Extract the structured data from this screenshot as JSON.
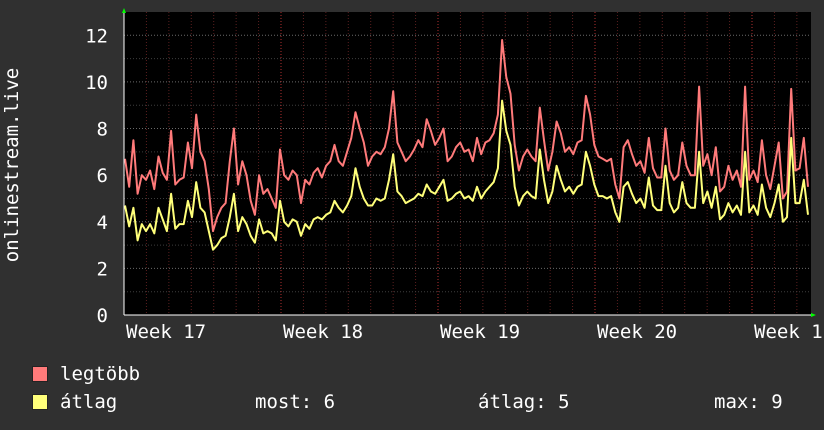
{
  "chart_data": {
    "type": "line",
    "ylabel": "onlinestream.live",
    "x_ticks": [
      "Week 17",
      "Week 18",
      "Week 19",
      "Week 20",
      "Week 1"
    ],
    "ylim": [
      0,
      13
    ],
    "y_ticks": [
      0,
      2,
      4,
      6,
      8,
      10,
      12
    ],
    "grid": true,
    "legend_position": "bottom-left",
    "series": [
      {
        "name": "legtöbb",
        "color": "#ff7a7a",
        "values": [
          6.7,
          5.5,
          7.5,
          5.2,
          6.0,
          5.8,
          6.2,
          5.4,
          6.8,
          6.1,
          5.8,
          7.9,
          5.6,
          5.8,
          5.9,
          7.4,
          6.3,
          8.6,
          7.0,
          6.6,
          5.4,
          3.6,
          4.2,
          4.6,
          4.8,
          6.6,
          8.0,
          5.6,
          6.6,
          6.0,
          4.9,
          4.3,
          6.0,
          5.2,
          5.4,
          5.0,
          4.6,
          7.1,
          6.0,
          5.8,
          6.2,
          6.0,
          4.8,
          5.8,
          5.6,
          6.1,
          6.3,
          5.9,
          6.4,
          6.6,
          7.3,
          6.6,
          6.4,
          7.0,
          7.6,
          8.7,
          8.0,
          7.4,
          6.4,
          6.8,
          7.0,
          6.9,
          7.2,
          8.0,
          9.6,
          7.4,
          7.0,
          6.6,
          6.8,
          7.1,
          7.5,
          7.2,
          8.4,
          7.9,
          7.3,
          7.6,
          8.0,
          6.6,
          6.8,
          7.2,
          7.4,
          7.0,
          7.1,
          6.6,
          7.6,
          6.9,
          7.4,
          7.5,
          7.8,
          8.6,
          11.8,
          10.2,
          9.5,
          7.3,
          6.2,
          6.8,
          7.1,
          6.8,
          6.6,
          8.9,
          7.5,
          6.2,
          7.0,
          8.3,
          7.8,
          7.0,
          7.2,
          6.9,
          7.4,
          7.5,
          9.4,
          8.6,
          7.3,
          6.8,
          6.7,
          6.6,
          6.7,
          5.6,
          5.0,
          7.2,
          7.5,
          6.9,
          6.4,
          6.6,
          6.1,
          7.6,
          6.3,
          5.9,
          5.9,
          8.0,
          6.2,
          5.8,
          6.0,
          7.4,
          6.4,
          6.0,
          6.0,
          9.8,
          6.4,
          6.9,
          6.0,
          7.2,
          5.3,
          5.5,
          6.4,
          5.8,
          6.2,
          5.5,
          9.8,
          5.8,
          6.2,
          5.7,
          7.5,
          6.0,
          5.4,
          6.4,
          7.4,
          5.0,
          5.3,
          9.7,
          6.2,
          6.3,
          7.6,
          5.5
        ]
      },
      {
        "name": "átlag",
        "color": "#ffff7a",
        "values": [
          4.7,
          3.8,
          4.6,
          3.2,
          3.9,
          3.6,
          3.9,
          3.5,
          4.6,
          4.1,
          3.6,
          5.2,
          3.7,
          3.9,
          3.9,
          4.9,
          4.2,
          5.7,
          4.6,
          4.4,
          3.6,
          2.8,
          3.0,
          3.3,
          3.4,
          4.2,
          5.2,
          3.6,
          4.2,
          3.9,
          3.4,
          3.1,
          4.1,
          3.5,
          3.6,
          3.5,
          3.2,
          4.9,
          4.0,
          3.8,
          4.1,
          4.0,
          3.4,
          3.9,
          3.7,
          4.1,
          4.2,
          4.1,
          4.3,
          4.4,
          4.9,
          4.6,
          4.4,
          4.7,
          5.1,
          6.3,
          5.5,
          5.0,
          4.7,
          4.7,
          5.0,
          4.9,
          5.0,
          5.8,
          6.9,
          5.3,
          5.1,
          4.8,
          4.9,
          5.0,
          5.2,
          5.1,
          5.6,
          5.3,
          5.2,
          5.5,
          5.8,
          4.9,
          5.0,
          5.2,
          5.3,
          5.0,
          5.1,
          4.9,
          5.5,
          5.0,
          5.3,
          5.5,
          5.7,
          6.3,
          9.2,
          7.9,
          7.3,
          5.5,
          4.7,
          5.1,
          5.3,
          5.1,
          5.0,
          7.1,
          5.8,
          4.8,
          5.3,
          6.4,
          5.8,
          5.3,
          5.5,
          5.2,
          5.5,
          5.6,
          7.0,
          6.4,
          5.6,
          5.1,
          5.1,
          5.0,
          5.1,
          4.4,
          4.0,
          5.5,
          5.7,
          5.2,
          4.8,
          5.0,
          4.6,
          5.9,
          4.7,
          4.5,
          4.5,
          6.4,
          4.8,
          4.4,
          4.6,
          5.7,
          4.8,
          4.6,
          4.6,
          7.0,
          4.8,
          5.3,
          4.6,
          5.5,
          4.1,
          4.3,
          4.8,
          4.4,
          4.7,
          4.3,
          7.0,
          4.4,
          4.7,
          4.3,
          5.6,
          4.6,
          4.2,
          4.8,
          5.6,
          4.0,
          4.2,
          7.6,
          4.8,
          4.8,
          5.8,
          4.3
        ]
      }
    ]
  },
  "legend": {
    "max_label": "legtöbb",
    "avg_label": "átlag",
    "stat_now": "most: 6",
    "stat_avg": "átlag: 5",
    "stat_max": "max: 9"
  }
}
